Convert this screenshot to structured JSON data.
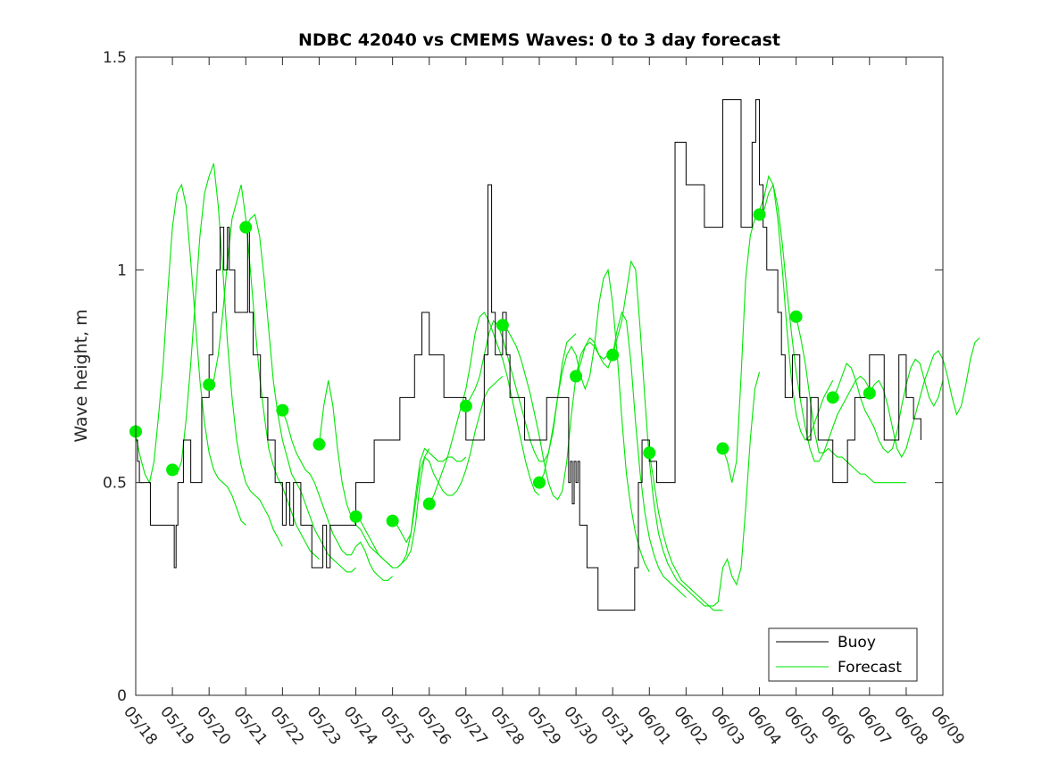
{
  "chart_data": {
    "type": "line",
    "title": "NDBC 42040 vs CMEMS Waves: 0 to 3 day forecast",
    "xlabel": "",
    "ylabel": "Wave height, m",
    "ylim": [
      0,
      1.5
    ],
    "yticks": [
      "0",
      "0.5",
      "1",
      "1.5"
    ],
    "xticks": [
      "05/18",
      "05/19",
      "05/20",
      "05/21",
      "05/22",
      "05/23",
      "05/24",
      "05/25",
      "05/26",
      "05/27",
      "05/28",
      "05/29",
      "05/30",
      "05/31",
      "06/01",
      "06/02",
      "06/03",
      "06/04",
      "06/05",
      "06/06",
      "06/07",
      "06/08",
      "06/09"
    ],
    "xlim_days": [
      0,
      22
    ],
    "grid": false,
    "legend_position": "bottom-right",
    "colors": {
      "buoy": "#000000",
      "forecast": "#00e600",
      "marker": "#00ee00"
    },
    "series": [
      {
        "name": "Buoy",
        "x": [
          0.0,
          0.05,
          0.1,
          0.2,
          0.3,
          0.4,
          0.5,
          1.0,
          1.05,
          1.1,
          1.15,
          1.2,
          1.3,
          1.5,
          1.6,
          1.8,
          1.9,
          2.0,
          2.1,
          2.2,
          2.3,
          2.4,
          2.5,
          2.55,
          2.6,
          2.7,
          2.8,
          2.9,
          3.0,
          3.05,
          3.1,
          3.15,
          3.2,
          3.3,
          3.4,
          3.5,
          3.6,
          3.7,
          3.8,
          3.9,
          4.0,
          4.1,
          4.2,
          4.3,
          4.4,
          4.5,
          4.6,
          4.7,
          4.8,
          4.9,
          5.0,
          5.1,
          5.2,
          5.3,
          5.4,
          5.5,
          5.7,
          6.0,
          6.3,
          6.5,
          6.8,
          7.0,
          7.2,
          7.4,
          7.6,
          7.8,
          8.0,
          8.2,
          8.4,
          8.6,
          8.8,
          9.0,
          9.2,
          9.4,
          9.5,
          9.6,
          9.7,
          9.8,
          10.0,
          10.1,
          10.2,
          10.4,
          10.6,
          10.8,
          11.0,
          11.2,
          11.4,
          11.6,
          11.8,
          11.85,
          11.9,
          11.95,
          12.0,
          12.05,
          12.1,
          12.2,
          12.3,
          12.4,
          12.6,
          12.8,
          13.0,
          13.2,
          13.4,
          13.6,
          13.7,
          13.8,
          14.0,
          14.2,
          14.4,
          14.5,
          14.7,
          15.0,
          15.5,
          16.0,
          16.5,
          16.8,
          16.9,
          17.0,
          17.1,
          17.2,
          17.4,
          17.5,
          17.6,
          17.7,
          17.8,
          17.9,
          18.0,
          18.1,
          18.2,
          18.3,
          18.4,
          18.5,
          18.6,
          18.8,
          19.0,
          19.2,
          19.4,
          19.6,
          19.8,
          20.0,
          20.2,
          20.4,
          20.6,
          20.8,
          21.0,
          21.2,
          21.4
        ],
        "y": [
          0.6,
          0.55,
          0.5,
          0.5,
          0.5,
          0.4,
          0.4,
          0.4,
          0.3,
          0.4,
          0.5,
          0.5,
          0.6,
          0.5,
          0.5,
          0.7,
          0.7,
          0.8,
          0.9,
          1.0,
          1.1,
          1.0,
          1.1,
          1.0,
          1.0,
          0.9,
          0.9,
          0.9,
          0.9,
          1.1,
          0.9,
          0.9,
          0.8,
          0.8,
          0.7,
          0.7,
          0.6,
          0.6,
          0.5,
          0.5,
          0.4,
          0.5,
          0.4,
          0.5,
          0.5,
          0.4,
          0.4,
          0.4,
          0.3,
          0.3,
          0.3,
          0.4,
          0.3,
          0.4,
          0.4,
          0.4,
          0.4,
          0.5,
          0.5,
          0.6,
          0.6,
          0.6,
          0.7,
          0.7,
          0.8,
          0.9,
          0.8,
          0.8,
          0.7,
          0.7,
          0.7,
          0.6,
          0.6,
          0.6,
          0.8,
          1.2,
          0.9,
          0.8,
          0.9,
          0.8,
          0.7,
          0.7,
          0.6,
          0.6,
          0.6,
          0.7,
          0.7,
          0.7,
          0.5,
          0.55,
          0.45,
          0.55,
          0.5,
          0.55,
          0.4,
          0.4,
          0.3,
          0.3,
          0.2,
          0.2,
          0.2,
          0.2,
          0.2,
          0.3,
          0.5,
          0.6,
          0.55,
          0.5,
          0.5,
          0.5,
          1.3,
          1.2,
          1.1,
          1.4,
          1.1,
          1.3,
          1.4,
          1.2,
          1.1,
          1.0,
          1.0,
          0.9,
          0.8,
          0.7,
          0.7,
          0.8,
          0.8,
          0.7,
          0.7,
          0.6,
          0.7,
          0.7,
          0.6,
          0.6,
          0.5,
          0.5,
          0.6,
          0.7,
          0.7,
          0.8,
          0.8,
          0.6,
          0.6,
          0.8,
          0.7,
          0.65,
          0.6
        ]
      },
      {
        "name": "Forecast",
        "runs": [
          {
            "start": 0.0,
            "y": [
              0.61,
              0.56,
              0.52,
              0.5,
              0.55,
              0.66,
              0.78,
              0.95,
              1.1,
              1.18,
              1.2,
              1.15,
              1.02,
              0.88,
              0.74,
              0.64,
              0.57,
              0.53,
              0.51,
              0.5,
              0.49,
              0.47,
              0.44,
              0.41,
              0.4
            ]
          },
          {
            "start": 1.0,
            "y": [
              0.53,
              0.52,
              0.55,
              0.65,
              0.78,
              0.93,
              1.08,
              1.18,
              1.22,
              1.25,
              1.15,
              1.0,
              0.83,
              0.7,
              0.6,
              0.54,
              0.5,
              0.48,
              0.47,
              0.46,
              0.44,
              0.42,
              0.39,
              0.37,
              0.35
            ]
          },
          {
            "start": 2.0,
            "y": [
              0.73,
              0.74,
              0.8,
              0.9,
              1.02,
              1.12,
              1.16,
              1.2,
              1.12,
              1.0,
              0.87,
              0.75,
              0.66,
              0.58,
              0.54,
              0.51,
              0.49,
              0.46,
              0.43,
              0.4,
              0.38,
              0.36,
              0.34,
              0.33,
              0.32
            ]
          },
          {
            "start": 3.0,
            "y": [
              1.1,
              1.12,
              1.13,
              1.08,
              0.98,
              0.86,
              0.74,
              0.66,
              0.6,
              0.56,
              0.52,
              0.5,
              0.48,
              0.45,
              0.42,
              0.39,
              0.37,
              0.35,
              0.33,
              0.32,
              0.31,
              0.3,
              0.29,
              0.29,
              0.3
            ]
          },
          {
            "start": 4.0,
            "y": [
              0.67,
              0.64,
              0.6,
              0.57,
              0.55,
              0.53,
              0.52,
              0.5,
              0.47,
              0.44,
              0.41,
              0.38,
              0.36,
              0.34,
              0.33,
              0.33,
              0.35,
              0.36,
              0.34,
              0.31,
              0.29,
              0.28,
              0.27,
              0.27,
              0.28
            ]
          },
          {
            "start": 5.0,
            "y": [
              0.59,
              0.68,
              0.74,
              0.68,
              0.58,
              0.5,
              0.45,
              0.42,
              0.4,
              0.39,
              0.37,
              0.35,
              0.34,
              0.33,
              0.32,
              0.31,
              0.3,
              0.3,
              0.31,
              0.32,
              0.34,
              0.4,
              0.5,
              0.56,
              0.58
            ]
          },
          {
            "start": 6.0,
            "y": [
              0.42,
              0.41,
              0.39,
              0.37,
              0.35,
              0.33,
              0.32,
              0.31,
              0.3,
              0.3,
              0.31,
              0.33,
              0.38,
              0.47,
              0.55,
              0.58,
              0.57,
              0.56,
              0.55,
              0.55,
              0.56,
              0.56,
              0.55,
              0.55,
              0.56
            ]
          },
          {
            "start": 7.0,
            "y": [
              0.41,
              0.4,
              0.38,
              0.36,
              0.38,
              0.45,
              0.53,
              0.56,
              0.55,
              0.52,
              0.5,
              0.48,
              0.47,
              0.47,
              0.48,
              0.5,
              0.53,
              0.57,
              0.62,
              0.66,
              0.7,
              0.72,
              0.73,
              0.74,
              0.75
            ]
          },
          {
            "start": 8.0,
            "y": [
              0.45,
              0.47,
              0.5,
              0.53,
              0.56,
              0.6,
              0.64,
              0.68,
              0.72,
              0.78,
              0.85,
              0.89,
              0.9,
              0.88,
              0.85,
              0.82,
              0.79,
              0.75,
              0.7,
              0.65,
              0.6,
              0.55,
              0.51,
              0.48,
              0.47
            ]
          },
          {
            "start": 9.0,
            "y": [
              0.68,
              0.7,
              0.72,
              0.75,
              0.8,
              0.85,
              0.88,
              0.87,
              0.84,
              0.8,
              0.76,
              0.72,
              0.68,
              0.64,
              0.6,
              0.57,
              0.55,
              0.55,
              0.57,
              0.62,
              0.7,
              0.78,
              0.83,
              0.84,
              0.85
            ]
          },
          {
            "start": 10.0,
            "y": [
              0.87,
              0.86,
              0.84,
              0.82,
              0.79,
              0.75,
              0.71,
              0.66,
              0.61,
              0.55,
              0.5,
              0.47,
              0.46,
              0.48,
              0.55,
              0.66,
              0.75,
              0.8,
              0.82,
              0.83,
              0.82,
              0.8,
              0.79,
              0.8,
              0.81
            ]
          },
          {
            "start": 11.0,
            "y": [
              0.5,
              0.52,
              0.57,
              0.63,
              0.7,
              0.76,
              0.8,
              0.82,
              0.8,
              0.75,
              0.72,
              0.75,
              0.82,
              0.92,
              0.98,
              1.0,
              0.92,
              0.8,
              0.65,
              0.52,
              0.44,
              0.38,
              0.34,
              0.31,
              0.29
            ]
          },
          {
            "start": 12.0,
            "y": [
              0.75,
              0.78,
              0.82,
              0.84,
              0.83,
              0.8,
              0.78,
              0.77,
              0.8,
              0.86,
              0.9,
              0.88,
              0.78,
              0.64,
              0.52,
              0.43,
              0.37,
              0.33,
              0.3,
              0.28,
              0.27,
              0.26,
              0.25,
              0.24,
              0.23
            ]
          },
          {
            "start": 13.0,
            "y": [
              0.8,
              0.84,
              0.88,
              0.95,
              1.02,
              1.0,
              0.86,
              0.7,
              0.55,
              0.45,
              0.38,
              0.34,
              0.31,
              0.29,
              0.27,
              0.26,
              0.25,
              0.24,
              0.23,
              0.22,
              0.21,
              0.21,
              0.2,
              0.2,
              0.2
            ]
          },
          {
            "start": 14.0,
            "y": [
              0.57,
              0.5,
              0.43,
              0.38,
              0.34,
              0.31,
              0.29,
              0.27,
              0.26,
              0.25,
              0.24,
              0.23,
              0.22,
              0.21,
              0.21,
              0.22,
              0.3,
              0.32,
              0.28,
              0.26,
              0.3,
              0.44,
              0.6,
              0.72,
              0.76
            ]
          },
          {
            "start": 16.0,
            "y": [
              0.58,
              0.55,
              0.5,
              0.55,
              0.75,
              0.98,
              1.08,
              1.12,
              1.14,
              1.17,
              1.22,
              1.2,
              1.12,
              1.0,
              0.86,
              0.74,
              0.66,
              0.62,
              0.6,
              0.61,
              0.64,
              0.67,
              0.7,
              0.72,
              0.74
            ]
          },
          {
            "start": 17.0,
            "y": [
              1.13,
              1.14,
              1.18,
              1.2,
              1.15,
              1.06,
              0.95,
              0.85,
              0.76,
              0.69,
              0.63,
              0.58,
              0.55,
              0.55,
              0.57,
              0.6,
              0.63,
              0.66,
              0.68,
              0.7,
              0.72,
              0.74,
              0.75,
              0.74,
              0.72
            ]
          },
          {
            "start": 18.0,
            "y": [
              0.89,
              0.84,
              0.78,
              0.7,
              0.62,
              0.57,
              0.57,
              0.58,
              0.57,
              0.56,
              0.56,
              0.55,
              0.54,
              0.53,
              0.52,
              0.52,
              0.51,
              0.5,
              0.5,
              0.5,
              0.5,
              0.5,
              0.5,
              0.5,
              0.5
            ]
          },
          {
            "start": 19.0,
            "y": [
              0.7,
              0.72,
              0.75,
              0.78,
              0.77,
              0.74,
              0.7,
              0.67,
              0.65,
              0.63,
              0.6,
              0.58,
              0.57,
              0.58,
              0.62,
              0.68,
              0.73,
              0.77,
              0.79,
              0.78,
              0.74,
              0.7,
              0.68,
              0.7,
              0.74
            ]
          },
          {
            "start": 20.0,
            "y": [
              0.71,
              0.73,
              0.74,
              0.72,
              0.68,
              0.63,
              0.58,
              0.56,
              0.58,
              0.62,
              0.66,
              0.7,
              0.74,
              0.77,
              0.8,
              0.81,
              0.79,
              0.75,
              0.7,
              0.66,
              0.68,
              0.73,
              0.79,
              0.83,
              0.84
            ]
          }
        ]
      }
    ],
    "markers": {
      "x": [
        0,
        1,
        2,
        3,
        4,
        5,
        6,
        7,
        8,
        9,
        10,
        11,
        12,
        13,
        14,
        16,
        17,
        18,
        19,
        20
      ],
      "y": [
        0.62,
        0.53,
        0.73,
        1.1,
        0.67,
        0.59,
        0.42,
        0.41,
        0.45,
        0.68,
        0.87,
        0.5,
        0.75,
        0.8,
        0.57,
        0.58,
        1.13,
        0.89,
        0.7,
        0.71
      ]
    },
    "legend": {
      "entries": [
        {
          "label": "Buoy",
          "color": "#000000"
        },
        {
          "label": "Forecast",
          "color": "#00e600"
        }
      ]
    }
  }
}
